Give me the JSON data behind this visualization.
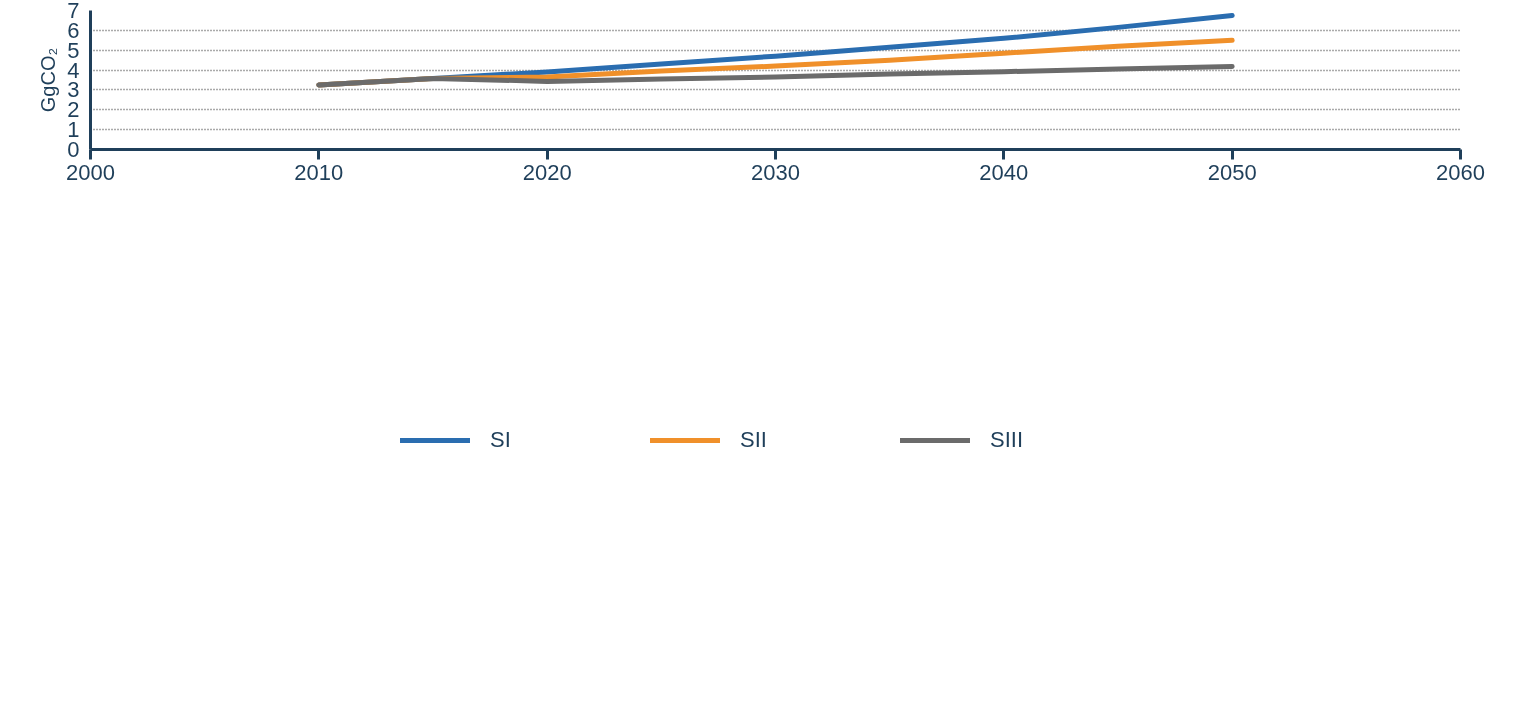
{
  "chart_data": {
    "type": "line",
    "ylabel": "GgCO₂",
    "x": [
      2010,
      2015,
      2020,
      2025,
      2030,
      2035,
      2040,
      2045,
      2050
    ],
    "series": [
      {
        "name": "SI",
        "color": "#2a6db0",
        "values": [
          3.25,
          3.58,
          3.9,
          4.3,
          4.7,
          5.15,
          5.6,
          6.15,
          6.75
        ]
      },
      {
        "name": "SII",
        "color": "#f0902a",
        "values": [
          3.25,
          3.58,
          3.65,
          3.95,
          4.2,
          4.5,
          4.85,
          5.2,
          5.5
        ]
      },
      {
        "name": "SIII",
        "color": "#6b6b6b",
        "values": [
          3.25,
          3.58,
          3.43,
          3.55,
          3.65,
          3.8,
          3.92,
          4.05,
          4.18
        ]
      }
    ],
    "xlim": [
      2000,
      2060
    ],
    "xticks": [
      2000,
      2010,
      2020,
      2030,
      2040,
      2050,
      2060
    ],
    "ylim": [
      0,
      7
    ],
    "yticks": [
      0,
      1,
      2,
      3,
      4,
      5,
      6,
      7
    ],
    "grid": "y",
    "legend": "bottom",
    "marker": "none",
    "line_style": "solid"
  }
}
